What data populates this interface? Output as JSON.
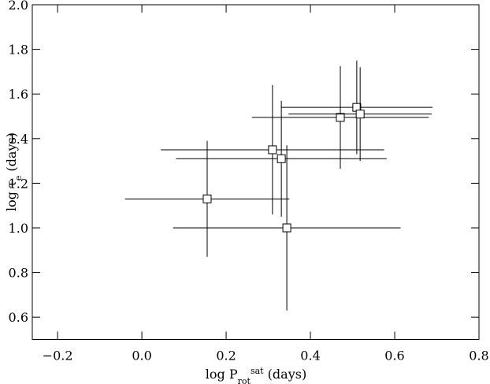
{
  "chart_data": {
    "type": "scatter",
    "xlabel": [
      "log P",
      "rot",
      "sat",
      " (days)"
    ],
    "ylabel": [
      "log τ",
      "e",
      " (days)"
    ],
    "x": [
      0.155,
      0.344,
      0.31,
      0.331,
      0.471,
      0.51,
      0.518
    ],
    "values": [
      1.13,
      1.0,
      1.35,
      1.31,
      1.495,
      1.54,
      1.51
    ],
    "xerr": [
      0.195,
      0.27,
      0.265,
      0.25,
      0.21,
      0.18,
      0.17
    ],
    "yerr": [
      0.26,
      0.37,
      0.29,
      0.26,
      0.23,
      0.21,
      0.21
    ],
    "color": "#000000",
    "xlim": [
      -0.26,
      0.8
    ],
    "ylim": [
      0.5,
      2.0
    ],
    "xticks": [
      {
        "value": -0.2,
        "label": "−0.2"
      },
      {
        "value": 0,
        "label": "0.0"
      },
      0.2,
      0.4,
      0.6,
      0.8
    ],
    "yticks": [
      0.6,
      0.8,
      {
        "value": 1,
        "label": "1.0"
      },
      1.2,
      1.4,
      1.6,
      1.8,
      {
        "value": 2,
        "label": "2.0"
      }
    ]
  }
}
